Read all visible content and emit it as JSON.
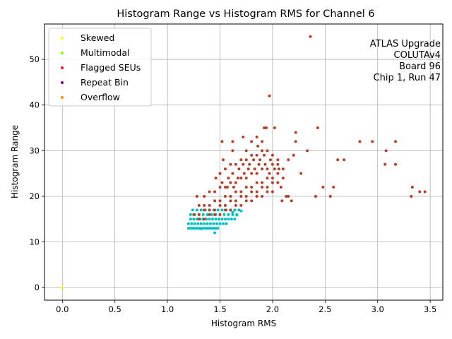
{
  "chart_data": {
    "type": "scatter",
    "title": "Histogram Range vs Histogram RMS for Channel 6",
    "xlabel": "Histogram RMS",
    "ylabel": "Histogram Range",
    "xlim": [
      -0.17,
      3.62
    ],
    "ylim": [
      -2.75,
      57.75
    ],
    "xticks": [
      "0.0",
      "0.5",
      "1.0",
      "1.5",
      "2.0",
      "2.5",
      "3.0",
      "3.5"
    ],
    "xtick_values": [
      0,
      0.5,
      1.0,
      1.5,
      2.0,
      2.5,
      3.0,
      3.5
    ],
    "yticks": [
      "0",
      "10",
      "20",
      "30",
      "40",
      "50"
    ],
    "ytick_values": [
      0,
      10,
      20,
      30,
      40,
      50
    ],
    "grid": true,
    "legend_position": "top-left",
    "annotation": [
      "ATLAS Upgrade",
      "COLUTAv4",
      "Board 96",
      "Chip 1, Run 47"
    ],
    "series": [
      {
        "name": "Skewed",
        "color": "#ffff00",
        "points": [
          [
            0.0,
            0
          ]
        ]
      },
      {
        "name": "Multimodal",
        "color": "#7fff00",
        "points": []
      },
      {
        "name": "Flagged SEUs",
        "color": "#dc143c",
        "points": []
      },
      {
        "name": "Repeat Bin",
        "color": "#800080",
        "points": []
      },
      {
        "name": "Overflow",
        "color": "#ff8c00",
        "points": []
      }
    ],
    "background_series": {
      "normal": {
        "color": "#00bfbf",
        "points": [
          [
            1.2,
            13
          ],
          [
            1.22,
            13
          ],
          [
            1.24,
            13
          ],
          [
            1.26,
            13
          ],
          [
            1.28,
            13
          ],
          [
            1.3,
            13
          ],
          [
            1.32,
            13
          ],
          [
            1.34,
            13
          ],
          [
            1.36,
            13
          ],
          [
            1.38,
            13
          ],
          [
            1.4,
            13
          ],
          [
            1.42,
            13
          ],
          [
            1.44,
            13
          ],
          [
            1.46,
            13
          ],
          [
            1.48,
            13
          ],
          [
            1.2,
            14
          ],
          [
            1.23,
            14
          ],
          [
            1.26,
            14
          ],
          [
            1.29,
            14
          ],
          [
            1.32,
            14
          ],
          [
            1.35,
            14
          ],
          [
            1.38,
            14
          ],
          [
            1.41,
            14
          ],
          [
            1.44,
            14
          ],
          [
            1.47,
            14
          ],
          [
            1.5,
            14
          ],
          [
            1.53,
            14
          ],
          [
            1.56,
            14
          ],
          [
            1.22,
            15
          ],
          [
            1.25,
            15
          ],
          [
            1.28,
            15
          ],
          [
            1.31,
            15
          ],
          [
            1.34,
            15
          ],
          [
            1.37,
            15
          ],
          [
            1.4,
            15
          ],
          [
            1.43,
            15
          ],
          [
            1.46,
            15
          ],
          [
            1.49,
            15
          ],
          [
            1.52,
            15
          ],
          [
            1.55,
            15
          ],
          [
            1.58,
            15
          ],
          [
            1.61,
            15
          ],
          [
            1.64,
            15
          ],
          [
            1.22,
            16
          ],
          [
            1.26,
            16
          ],
          [
            1.3,
            16
          ],
          [
            1.34,
            16
          ],
          [
            1.38,
            16
          ],
          [
            1.42,
            16
          ],
          [
            1.46,
            16
          ],
          [
            1.5,
            16
          ],
          [
            1.54,
            16
          ],
          [
            1.58,
            16
          ],
          [
            1.62,
            16
          ],
          [
            1.66,
            16
          ],
          [
            1.24,
            17
          ],
          [
            1.28,
            17
          ],
          [
            1.32,
            17
          ],
          [
            1.36,
            17
          ],
          [
            1.4,
            17
          ],
          [
            1.44,
            17
          ],
          [
            1.48,
            17
          ],
          [
            1.52,
            17
          ],
          [
            1.56,
            17
          ],
          [
            1.6,
            17
          ],
          [
            1.64,
            17
          ],
          [
            1.68,
            17
          ],
          [
            1.45,
            12
          ],
          [
            1.32,
            12.9
          ],
          [
            1.66,
            15.9
          ],
          [
            1.7,
            16.8
          ],
          [
            1.62,
            16.5
          ]
        ]
      },
      "run": {
        "color": "#b5402a",
        "points": [
          [
            1.52,
            32
          ],
          [
            1.62,
            32
          ],
          [
            1.8,
            32
          ],
          [
            1.9,
            32
          ],
          [
            1.97,
            42
          ],
          [
            2.02,
            35
          ],
          [
            1.92,
            35
          ],
          [
            1.94,
            35
          ],
          [
            2.36,
            55
          ],
          [
            2.43,
            35
          ],
          [
            2.22,
            34
          ],
          [
            1.72,
            33
          ],
          [
            1.85,
            33
          ],
          [
            1.86,
            31
          ],
          [
            2.22,
            32
          ],
          [
            2.83,
            32
          ],
          [
            2.95,
            32
          ],
          [
            3.17,
            32
          ],
          [
            3.08,
            30
          ],
          [
            2.33,
            30
          ],
          [
            1.75,
            30
          ],
          [
            1.62,
            30
          ],
          [
            2.62,
            28
          ],
          [
            2.68,
            28
          ],
          [
            2.2,
            29
          ],
          [
            2.15,
            28
          ],
          [
            1.53,
            28
          ],
          [
            3.07,
            27
          ],
          [
            3.17,
            27
          ],
          [
            2.27,
            25
          ],
          [
            2.48,
            22
          ],
          [
            2.58,
            22
          ],
          [
            3.33,
            22
          ],
          [
            3.4,
            21
          ],
          [
            3.45,
            21
          ],
          [
            3.32,
            20
          ],
          [
            2.41,
            20
          ],
          [
            2.55,
            20
          ],
          [
            2.09,
            19
          ],
          [
            2.18,
            19
          ],
          [
            2.13,
            20
          ],
          [
            2.15,
            20
          ],
          [
            2.08,
            22
          ],
          [
            1.28,
            20
          ],
          [
            1.35,
            20
          ],
          [
            1.4,
            21
          ],
          [
            1.45,
            21
          ],
          [
            1.5,
            22
          ],
          [
            1.55,
            22
          ],
          [
            1.6,
            23
          ],
          [
            1.65,
            23
          ],
          [
            1.7,
            24
          ],
          [
            1.75,
            24
          ],
          [
            1.8,
            25
          ],
          [
            1.85,
            25
          ],
          [
            1.9,
            26
          ],
          [
            1.95,
            26
          ],
          [
            2.0,
            27
          ],
          [
            2.05,
            27
          ],
          [
            1.3,
            18
          ],
          [
            1.35,
            18
          ],
          [
            1.4,
            18
          ],
          [
            1.45,
            19
          ],
          [
            1.5,
            19
          ],
          [
            1.55,
            20
          ],
          [
            1.6,
            20
          ],
          [
            1.65,
            21
          ],
          [
            1.7,
            21
          ],
          [
            1.75,
            22
          ],
          [
            1.8,
            22
          ],
          [
            1.85,
            23
          ],
          [
            1.9,
            23
          ],
          [
            1.95,
            24
          ],
          [
            2.0,
            24
          ],
          [
            2.05,
            25
          ],
          [
            2.1,
            24
          ],
          [
            1.25,
            16
          ],
          [
            1.3,
            16
          ],
          [
            1.35,
            17
          ],
          [
            1.4,
            17
          ],
          [
            1.45,
            17
          ],
          [
            1.5,
            18
          ],
          [
            1.55,
            18
          ],
          [
            1.6,
            19
          ],
          [
            1.65,
            19
          ],
          [
            1.7,
            20
          ],
          [
            1.75,
            20
          ],
          [
            1.8,
            21
          ],
          [
            1.85,
            21
          ],
          [
            1.9,
            22
          ],
          [
            1.95,
            22
          ],
          [
            2.0,
            23
          ],
          [
            2.05,
            23
          ],
          [
            1.3,
            15
          ],
          [
            1.35,
            15
          ],
          [
            1.4,
            16
          ],
          [
            1.45,
            16
          ],
          [
            1.5,
            16
          ],
          [
            1.55,
            17
          ],
          [
            1.6,
            17
          ],
          [
            1.65,
            18
          ],
          [
            1.7,
            18
          ],
          [
            1.75,
            19
          ],
          [
            1.8,
            19
          ],
          [
            1.85,
            20
          ],
          [
            1.9,
            20
          ],
          [
            1.95,
            21
          ],
          [
            2.0,
            21
          ],
          [
            1.5,
            25
          ],
          [
            1.55,
            26
          ],
          [
            1.6,
            27
          ],
          [
            1.65,
            27
          ],
          [
            1.7,
            28
          ],
          [
            1.75,
            28
          ],
          [
            1.8,
            29
          ],
          [
            1.85,
            29
          ],
          [
            1.9,
            30
          ],
          [
            1.95,
            30
          ],
          [
            2.0,
            29
          ],
          [
            2.05,
            28
          ],
          [
            2.1,
            26
          ],
          [
            1.58,
            24
          ],
          [
            1.62,
            25
          ],
          [
            1.68,
            26
          ],
          [
            1.72,
            27
          ],
          [
            1.78,
            27
          ],
          [
            1.82,
            28
          ],
          [
            1.88,
            28
          ],
          [
            1.92,
            29
          ],
          [
            1.98,
            28
          ],
          [
            2.02,
            26
          ],
          [
            2.06,
            26
          ],
          [
            1.46,
            24
          ],
          [
            1.52,
            23
          ],
          [
            1.57,
            22
          ],
          [
            1.63,
            22
          ],
          [
            1.67,
            24
          ],
          [
            1.73,
            25
          ],
          [
            1.77,
            26
          ],
          [
            1.83,
            26
          ],
          [
            1.87,
            27
          ],
          [
            1.93,
            27
          ],
          [
            1.97,
            25
          ]
        ]
      }
    }
  }
}
